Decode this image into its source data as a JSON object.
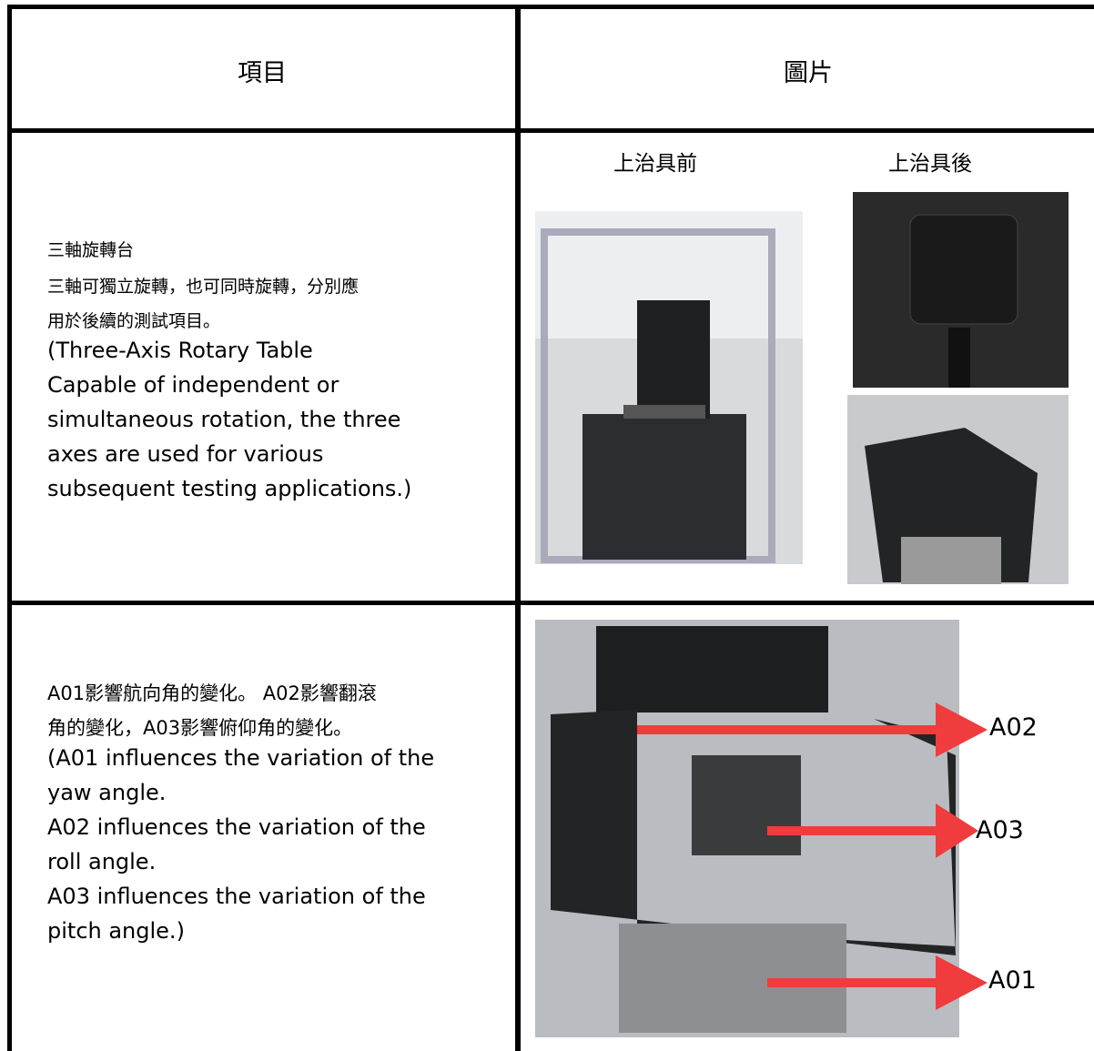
{
  "header": {
    "col1": "項目",
    "col2": "圖片"
  },
  "rows": [
    {
      "lines": [
        "三軸旋轉台",
        "三軸可獨立旋轉，也可同時旋轉，分別應",
        "用於後續的測試項目。",
        "(Three-Axis Rotary Table",
        "Capable of independent or",
        "simultaneous rotation, the three",
        "axes are used for various",
        "subsequent testing applications.)"
      ],
      "captions": [
        "上治具前",
        "上治具後"
      ]
    },
    {
      "lines": [
        "A01影響航向角的變化。 A02影響翻滾",
        "角的變化，A03影響俯仰角的變化。",
        "(A01 influences the variation of the",
        "yaw angle.",
        "A02 influences the variation of the",
        "roll angle.",
        "A03 influences the variation of the",
        "pitch angle.)"
      ],
      "labels": [
        "A02",
        "A03",
        "A01"
      ]
    }
  ]
}
